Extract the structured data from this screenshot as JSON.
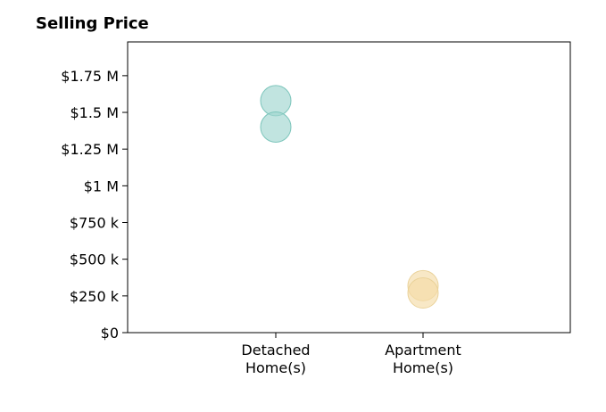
{
  "chart_data": {
    "type": "scatter",
    "title": "Selling Price",
    "categories": [
      "Detached\nHome(s)",
      "Apartment\nHome(s)"
    ],
    "y_ticks": [
      {
        "value": 0,
        "label": "$0"
      },
      {
        "value": 250000,
        "label": "$250 k"
      },
      {
        "value": 500000,
        "label": "$500 k"
      },
      {
        "value": 750000,
        "label": "$750 k"
      },
      {
        "value": 1000000,
        "label": "$1 M"
      },
      {
        "value": 1250000,
        "label": "$1.25 M"
      },
      {
        "value": 1500000,
        "label": "$1.5 M"
      },
      {
        "value": 1750000,
        "label": "$1.75 M"
      }
    ],
    "ylim": [
      0,
      1980000
    ],
    "series": [
      {
        "category": "Detached\nHome(s)",
        "values": [
          1580000,
          1400000
        ],
        "color": "#9fd6cf",
        "stroke": "#7cc5bb"
      },
      {
        "category": "Apartment\nHome(s)",
        "values": [
          320000,
          270000
        ],
        "color": "#f5dca8",
        "stroke": "#ead29a"
      }
    ],
    "grid": false,
    "xlabel": "",
    "ylabel": ""
  }
}
